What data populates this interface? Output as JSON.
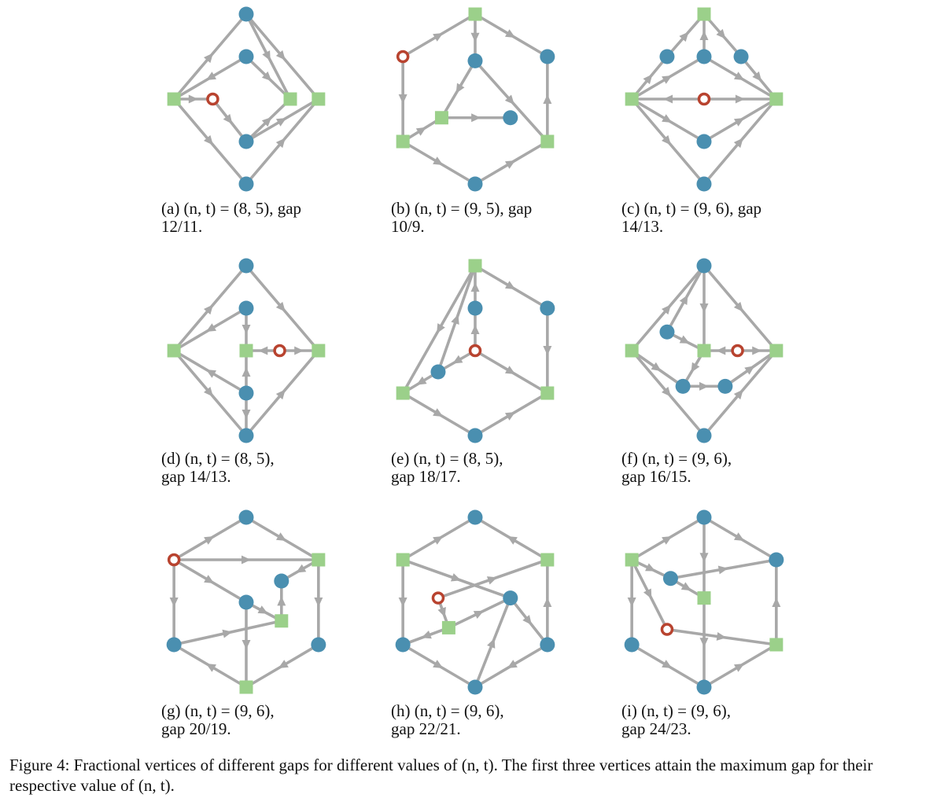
{
  "panels": [
    {
      "caption": "(a) (n, t) = (8, 5), gap\n12/11.",
      "nodes": [
        [
          0,
          -1,
          "b"
        ],
        [
          0,
          -0.5,
          "b"
        ],
        [
          -0.82,
          0,
          "s"
        ],
        [
          -0.38,
          0,
          "r"
        ],
        [
          0.5,
          0,
          "s"
        ],
        [
          0.82,
          0,
          "s"
        ],
        [
          0,
          0.5,
          "b"
        ],
        [
          0,
          1,
          "b"
        ]
      ],
      "edges": [
        [
          2,
          0
        ],
        [
          0,
          4
        ],
        [
          0,
          5
        ],
        [
          1,
          2
        ],
        [
          1,
          4
        ],
        [
          2,
          3
        ],
        [
          3,
          6
        ],
        [
          6,
          4
        ],
        [
          6,
          5
        ],
        [
          2,
          7
        ],
        [
          7,
          5
        ]
      ]
    },
    {
      "caption": "(b) (n, t) = (9, 5), gap\n10/9.",
      "nodes": [
        [
          0,
          -1,
          "s"
        ],
        [
          -0.82,
          -0.5,
          "r"
        ],
        [
          0.82,
          -0.5,
          "b"
        ],
        [
          0,
          -0.45,
          "b"
        ],
        [
          -0.38,
          0.22,
          "s"
        ],
        [
          0.4,
          0.22,
          "b"
        ],
        [
          -0.82,
          0.5,
          "s"
        ],
        [
          0.82,
          0.5,
          "s"
        ],
        [
          0,
          1,
          "b"
        ]
      ],
      "edges": [
        [
          1,
          0
        ],
        [
          0,
          2
        ],
        [
          0,
          3
        ],
        [
          1,
          6
        ],
        [
          6,
          8
        ],
        [
          8,
          7
        ],
        [
          7,
          2
        ],
        [
          3,
          4
        ],
        [
          3,
          7
        ],
        [
          4,
          5
        ],
        [
          6,
          4
        ]
      ]
    },
    {
      "caption": "(c) (n, t) = (9, 6), gap\n14/13.",
      "nodes": [
        [
          0,
          -1,
          "s"
        ],
        [
          -0.42,
          -0.5,
          "b"
        ],
        [
          0,
          -0.5,
          "b"
        ],
        [
          0.42,
          -0.5,
          "b"
        ],
        [
          -0.82,
          0,
          "s"
        ],
        [
          0,
          0,
          "r"
        ],
        [
          0.82,
          0,
          "s"
        ],
        [
          0,
          0.5,
          "b"
        ],
        [
          0,
          1,
          "b"
        ]
      ],
      "edges": [
        [
          2,
          0
        ],
        [
          1,
          0
        ],
        [
          0,
          3
        ],
        [
          4,
          1
        ],
        [
          4,
          2
        ],
        [
          3,
          6
        ],
        [
          2,
          6
        ],
        [
          5,
          4
        ],
        [
          5,
          6
        ],
        [
          4,
          7
        ],
        [
          7,
          6
        ],
        [
          4,
          8
        ],
        [
          8,
          6
        ]
      ]
    },
    {
      "caption": "(d) (n, t) = (8, 5),\ngap 14/13.",
      "nodes": [
        [
          0,
          -1,
          "b"
        ],
        [
          0,
          -0.5,
          "b"
        ],
        [
          -0.82,
          0,
          "s"
        ],
        [
          0,
          0,
          "s"
        ],
        [
          0.38,
          0,
          "r"
        ],
        [
          0.82,
          0,
          "s"
        ],
        [
          0,
          0.5,
          "b"
        ],
        [
          0,
          1,
          "b"
        ]
      ],
      "edges": [
        [
          2,
          0
        ],
        [
          0,
          5
        ],
        [
          1,
          2
        ],
        [
          1,
          3
        ],
        [
          4,
          3
        ],
        [
          4,
          5
        ],
        [
          6,
          2
        ],
        [
          6,
          3
        ],
        [
          6,
          7
        ],
        [
          2,
          7
        ],
        [
          7,
          5
        ]
      ]
    },
    {
      "caption": "(e) (n, t) = (8, 5),\ngap 18/17.",
      "nodes": [
        [
          0,
          -1,
          "s"
        ],
        [
          0.82,
          -0.5,
          "b"
        ],
        [
          0,
          -0.5,
          "b"
        ],
        [
          0,
          0,
          "r"
        ],
        [
          -0.42,
          0.25,
          "b"
        ],
        [
          -0.82,
          0.5,
          "s"
        ],
        [
          0.82,
          0.5,
          "s"
        ],
        [
          0,
          1,
          "b"
        ]
      ],
      "edges": [
        [
          0,
          1
        ],
        [
          1,
          6
        ],
        [
          2,
          0
        ],
        [
          3,
          2
        ],
        [
          3,
          6
        ],
        [
          3,
          4
        ],
        [
          4,
          0
        ],
        [
          4,
          5
        ],
        [
          0,
          5
        ],
        [
          5,
          7
        ],
        [
          7,
          6
        ]
      ]
    },
    {
      "caption": "(f) (n, t) = (9, 6),\ngap 16/15.",
      "nodes": [
        [
          0,
          -1,
          "b"
        ],
        [
          -0.42,
          -0.22,
          "b"
        ],
        [
          -0.82,
          0,
          "s"
        ],
        [
          0,
          0,
          "s"
        ],
        [
          0.38,
          0,
          "r"
        ],
        [
          0.82,
          0,
          "s"
        ],
        [
          -0.24,
          0.42,
          "b"
        ],
        [
          0.24,
          0.42,
          "b"
        ],
        [
          0,
          1,
          "b"
        ]
      ],
      "edges": [
        [
          2,
          0
        ],
        [
          1,
          0
        ],
        [
          0,
          5
        ],
        [
          0,
          3
        ],
        [
          1,
          3
        ],
        [
          4,
          3
        ],
        [
          4,
          5
        ],
        [
          2,
          6
        ],
        [
          3,
          6
        ],
        [
          6,
          7
        ],
        [
          7,
          5
        ],
        [
          2,
          8
        ],
        [
          8,
          5
        ]
      ]
    },
    {
      "caption": "(g) (n, t) = (9, 6),\ngap 20/19.",
      "nodes": [
        [
          0,
          -1,
          "b"
        ],
        [
          -0.82,
          -0.5,
          "r"
        ],
        [
          0.82,
          -0.5,
          "s"
        ],
        [
          0.4,
          -0.25,
          "b"
        ],
        [
          0,
          0,
          "b"
        ],
        [
          0.4,
          0.22,
          "s"
        ],
        [
          -0.82,
          0.5,
          "b"
        ],
        [
          0.82,
          0.5,
          "b"
        ],
        [
          0,
          1,
          "s"
        ]
      ],
      "edges": [
        [
          1,
          0
        ],
        [
          0,
          2
        ],
        [
          1,
          2
        ],
        [
          1,
          4
        ],
        [
          4,
          5
        ],
        [
          2,
          3
        ],
        [
          5,
          3
        ],
        [
          1,
          6
        ],
        [
          6,
          5
        ],
        [
          2,
          7
        ],
        [
          4,
          8
        ],
        [
          7,
          8
        ],
        [
          8,
          6
        ]
      ]
    },
    {
      "caption": "(h) (n, t) = (9, 6),\ngap 22/21.",
      "nodes": [
        [
          -0.82,
          -0.5,
          "s"
        ],
        [
          0,
          -1,
          "b"
        ],
        [
          0.82,
          -0.5,
          "s"
        ],
        [
          0.4,
          -0.05,
          "b"
        ],
        [
          -0.42,
          -0.05,
          "r"
        ],
        [
          -0.3,
          0.3,
          "s"
        ],
        [
          -0.82,
          0.5,
          "b"
        ],
        [
          0.82,
          0.5,
          "b"
        ],
        [
          0,
          1,
          "b"
        ]
      ],
      "edges": [
        [
          0,
          1
        ],
        [
          2,
          1
        ],
        [
          0,
          3
        ],
        [
          3,
          7
        ],
        [
          4,
          2
        ],
        [
          4,
          5
        ],
        [
          5,
          3
        ],
        [
          5,
          6
        ],
        [
          0,
          6
        ],
        [
          6,
          8
        ],
        [
          8,
          3
        ],
        [
          7,
          2
        ],
        [
          7,
          8
        ]
      ]
    },
    {
      "caption": "(i) (n, t) = (9, 6),\ngap 24/23.",
      "nodes": [
        [
          0,
          -1,
          "b"
        ],
        [
          -0.82,
          -0.5,
          "s"
        ],
        [
          0.82,
          -0.5,
          "b"
        ],
        [
          -0.38,
          -0.28,
          "b"
        ],
        [
          0,
          -0.05,
          "s"
        ],
        [
          -0.42,
          0.32,
          "r"
        ],
        [
          -0.82,
          0.5,
          "b"
        ],
        [
          0.82,
          0.5,
          "s"
        ],
        [
          0,
          1,
          "b"
        ]
      ],
      "edges": [
        [
          1,
          0
        ],
        [
          0,
          2
        ],
        [
          0,
          4
        ],
        [
          1,
          3
        ],
        [
          3,
          4
        ],
        [
          3,
          2
        ],
        [
          1,
          5
        ],
        [
          5,
          7
        ],
        [
          1,
          6
        ],
        [
          6,
          8
        ],
        [
          8,
          7
        ],
        [
          7,
          2
        ],
        [
          4,
          8
        ]
      ]
    }
  ],
  "figure_caption": "Figure 4: Fractional vertices of different gaps for different values of (n, t). The first three vertices attain the maximum gap for their respective value of (n, t).",
  "colors": {
    "edge": "#a8a8a8",
    "circle": "#4a8fb0",
    "square": "#9bd08a",
    "ring": "#b8432f"
  }
}
